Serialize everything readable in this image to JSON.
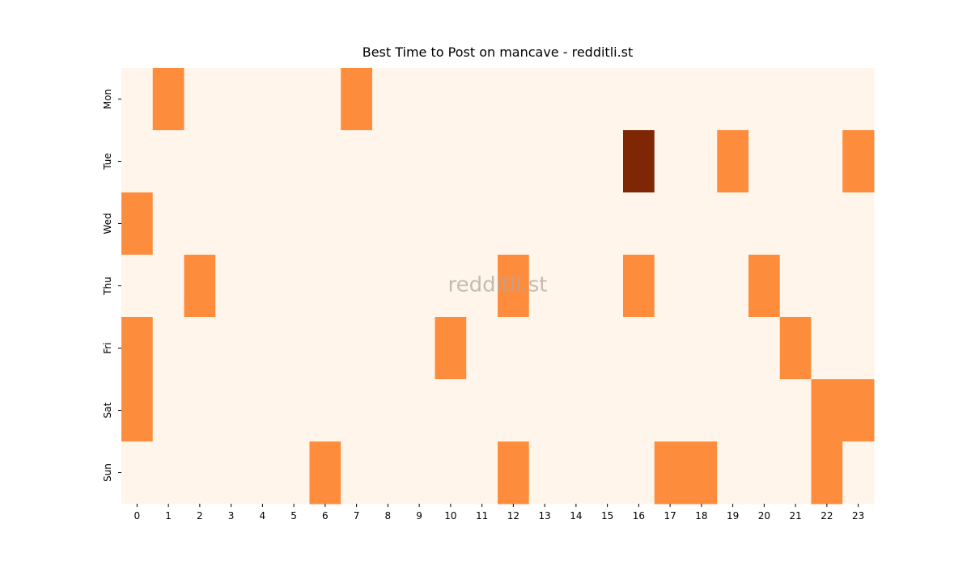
{
  "chart_data": {
    "type": "heatmap",
    "title": "Best Time to Post on mancave - redditli.st",
    "watermark": "redditli.st",
    "x_categories": [
      "0",
      "1",
      "2",
      "3",
      "4",
      "5",
      "6",
      "7",
      "8",
      "9",
      "10",
      "11",
      "12",
      "13",
      "14",
      "15",
      "16",
      "17",
      "18",
      "19",
      "20",
      "21",
      "22",
      "23"
    ],
    "y_categories": [
      "Mon",
      "Tue",
      "Wed",
      "Thu",
      "Fri",
      "Sat",
      "Sun"
    ],
    "values": [
      [
        0,
        1,
        0,
        0,
        0,
        0,
        0,
        1,
        0,
        0,
        0,
        0,
        0,
        0,
        0,
        0,
        0,
        0,
        0,
        0,
        0,
        0,
        0,
        0
      ],
      [
        0,
        0,
        0,
        0,
        0,
        0,
        0,
        0,
        0,
        0,
        0,
        0,
        0,
        0,
        0,
        0,
        2,
        0,
        0,
        1,
        0,
        0,
        0,
        1
      ],
      [
        1,
        0,
        0,
        0,
        0,
        0,
        0,
        0,
        0,
        0,
        0,
        0,
        0,
        0,
        0,
        0,
        0,
        0,
        0,
        0,
        0,
        0,
        0,
        0
      ],
      [
        0,
        0,
        1,
        0,
        0,
        0,
        0,
        0,
        0,
        0,
        0,
        0,
        1,
        0,
        0,
        0,
        1,
        0,
        0,
        0,
        1,
        0,
        0,
        0
      ],
      [
        1,
        0,
        0,
        0,
        0,
        0,
        0,
        0,
        0,
        0,
        1,
        0,
        0,
        0,
        0,
        0,
        0,
        0,
        0,
        0,
        0,
        1,
        0,
        0
      ],
      [
        1,
        0,
        0,
        0,
        0,
        0,
        0,
        0,
        0,
        0,
        0,
        0,
        0,
        0,
        0,
        0,
        0,
        0,
        0,
        0,
        0,
        0,
        1,
        1
      ],
      [
        0,
        0,
        0,
        0,
        0,
        0,
        1,
        0,
        0,
        0,
        0,
        0,
        1,
        0,
        0,
        0,
        0,
        1,
        1,
        0,
        0,
        0,
        1,
        0
      ]
    ],
    "colorscale": [
      {
        "value": 0,
        "color": "#fff5eb"
      },
      {
        "value": 1,
        "color": "#fd8d3c"
      },
      {
        "value": 2,
        "color": "#7f2704"
      }
    ]
  }
}
